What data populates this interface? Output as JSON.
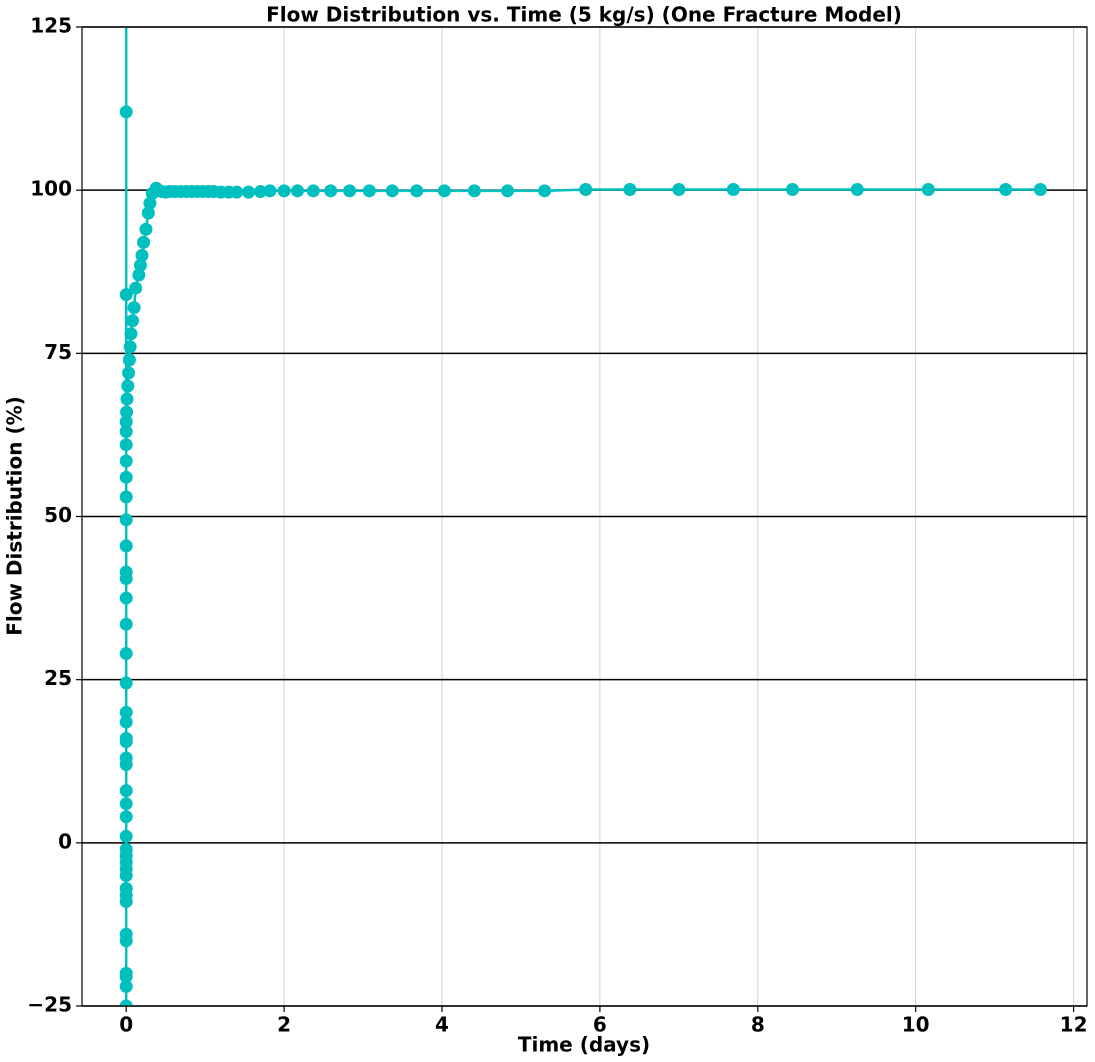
{
  "chart_data": {
    "type": "line",
    "title": "Flow Distribution vs. Time (5 kg/s) (One Fracture Model)",
    "x_label": "Time (days)",
    "y_label": "Flow Distribution (%)",
    "color": "#00bfbf",
    "x": [
      0,
      0,
      0,
      0,
      0,
      0,
      0,
      0,
      0,
      0,
      0,
      0,
      0,
      0,
      0,
      0,
      0,
      0,
      0,
      0,
      0,
      0,
      0,
      0,
      0,
      0,
      0,
      0,
      0,
      0,
      0,
      0,
      0,
      0,
      0,
      0,
      0,
      0,
      0,
      0,
      0,
      0.005,
      0.01,
      0.02,
      0.03,
      0.04,
      0.05,
      0.06,
      0.08,
      0.1,
      0.12,
      0.16,
      0.18,
      0.2,
      0.22,
      0.25,
      0.28,
      0.3,
      0.33,
      0.38,
      0.45,
      0.5,
      0.55,
      0.62,
      0.69,
      0.76,
      0.83,
      0.9,
      0.97,
      1.04,
      1.11,
      1.2,
      1.3,
      1.4,
      1.55,
      1.7,
      1.82,
      2.0,
      2.17,
      2.37,
      2.59,
      2.83,
      3.08,
      3.37,
      3.68,
      4.03,
      4.41,
      4.83,
      5.3,
      5.82,
      6.38,
      7.0,
      7.69,
      8.44,
      9.26,
      10.16,
      11.14,
      11.58
    ],
    "values": [
      140,
      112,
      84,
      -25,
      -22,
      -20.5,
      -20,
      -15,
      -14,
      -9,
      -8,
      -7,
      -5,
      -4,
      -3,
      -2,
      -1,
      1,
      4,
      6,
      8,
      12,
      13,
      15.5,
      16,
      18.5,
      20,
      24.5,
      29,
      33.5,
      37.5,
      40.5,
      41.5,
      45.5,
      49.5,
      53,
      56,
      58.5,
      61,
      63,
      64.5,
      66,
      68,
      70,
      72,
      74,
      76,
      78,
      80,
      82,
      85,
      87,
      88.5,
      90,
      92,
      94,
      96.5,
      98,
      99.5,
      100.3,
      99.8,
      99.7,
      99.8,
      99.8,
      99.8,
      99.8,
      99.8,
      99.8,
      99.8,
      99.8,
      99.8,
      99.7,
      99.7,
      99.7,
      99.7,
      99.8,
      99.9,
      99.9,
      99.9,
      99.9,
      99.9,
      99.9,
      99.9,
      99.9,
      99.9,
      99.9,
      99.9,
      99.9,
      99.9,
      100.1,
      100.1,
      100.1,
      100.1,
      100.1,
      100.1,
      100.1,
      100.1,
      100.1
    ],
    "xlim": [
      -0.56,
      12.17
    ],
    "ylim": [
      -25,
      125
    ],
    "xticks": [
      0,
      2,
      4,
      6,
      8,
      10,
      12
    ],
    "yticks": [
      {
        "value": -25,
        "label": "−25"
      },
      0,
      25,
      50,
      75,
      100,
      125
    ],
    "xgrid_color": "#d3d3d3",
    "ygrid_color": "#000000"
  }
}
